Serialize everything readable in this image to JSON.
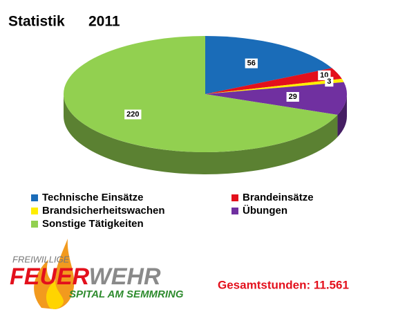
{
  "chart_data": {
    "type": "pie",
    "title": "Statistik",
    "subtitle": "2011",
    "categories": [
      "Technische Einsätze",
      "Brandeinsätze",
      "Brandsicherheitswachen",
      "Übungen",
      "Sonstige Tätigkeiten"
    ],
    "values": [
      56,
      10,
      3,
      29,
      220
    ],
    "colors": [
      "#1a6cb8",
      "#e3101c",
      "#ffee00",
      "#7030a0",
      "#92d050"
    ],
    "annotation": "Gesamtstunden: 11.561"
  },
  "logo": {
    "top": "FREIWILLIGE",
    "name": [
      "FEUER",
      "WEHR"
    ],
    "place": "SPITAL AM SEMMRING"
  }
}
